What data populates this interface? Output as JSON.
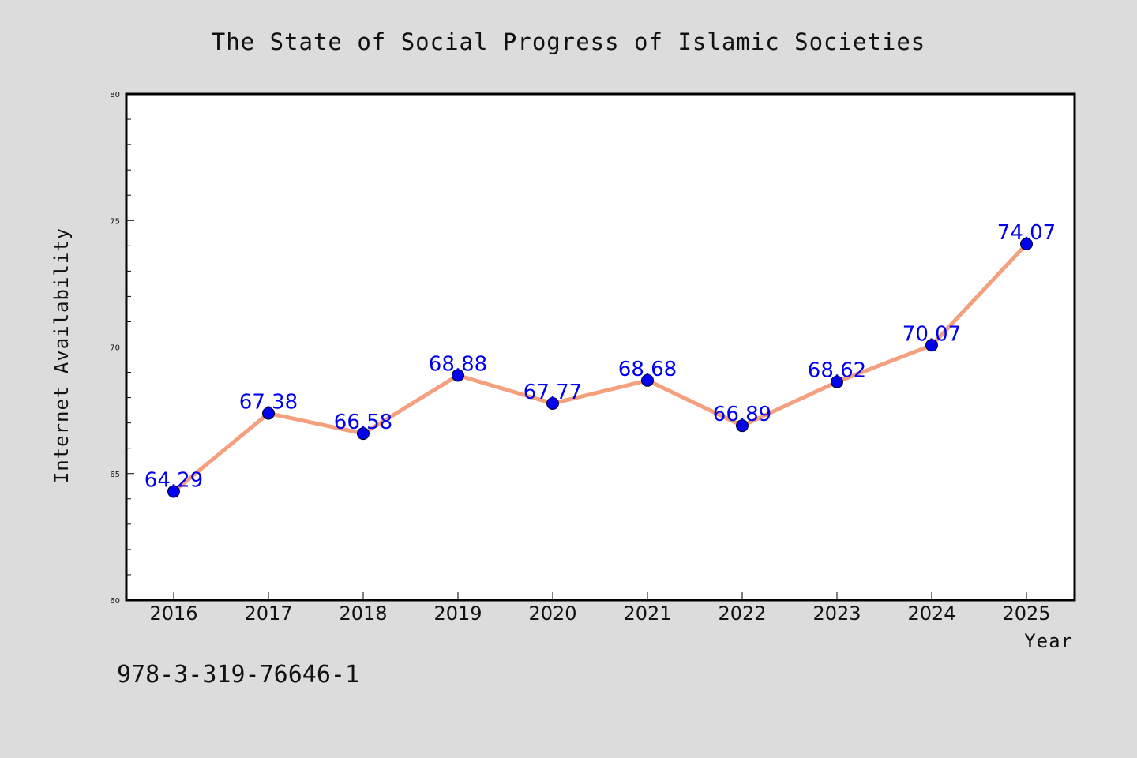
{
  "chart_data": {
    "type": "line",
    "title": "The State of Social Progress of Islamic Societies",
    "xlabel": "Year",
    "ylabel": "Internet Availability",
    "categories": [
      "2016",
      "2017",
      "2018",
      "2019",
      "2020",
      "2021",
      "2022",
      "2023",
      "2024",
      "2025"
    ],
    "series": [
      {
        "values": [
          64.29,
          67.38,
          66.58,
          68.88,
          67.77,
          68.68,
          66.89,
          68.62,
          70.07,
          74.07
        ],
        "line_color": "#f4a07e",
        "marker_color": "#0000ee"
      }
    ],
    "data_labels": [
      "64.29",
      "67.38",
      "66.58",
      "68.88",
      "67.77",
      "68.68",
      "66.89",
      "68.62",
      "70.07",
      "74.07"
    ],
    "ylim": [
      60,
      80
    ],
    "y_ticks": [
      "60",
      "65",
      "70",
      "75",
      "80"
    ],
    "y_tick_values": [
      60,
      65,
      70,
      75,
      80
    ],
    "y_minor_step": 1,
    "grid": false,
    "legend": "none"
  },
  "footnote": "978-3-319-76646-1",
  "colors": {
    "background": "#dcdcdc",
    "plot_background": "#ffffff",
    "line": "#f4a07e",
    "marker": "#0000ee",
    "data_label": "#0000ee",
    "text": "#111111"
  }
}
